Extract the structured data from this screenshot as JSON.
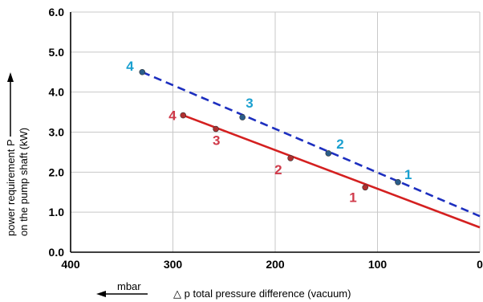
{
  "chart_data": {
    "type": "line",
    "xlabel": "△ p total pressure difference (vacuum)",
    "xunit": "mbar",
    "ylabel_line1": "power requirement P",
    "ylabel_line2": "on the pump shaft (kW)",
    "xlim": [
      400,
      0
    ],
    "ylim": [
      0.0,
      6.0
    ],
    "x_ticks": [
      400,
      300,
      200,
      100,
      0
    ],
    "x_tick_labels": [
      "400",
      "300",
      "200",
      "100",
      "0"
    ],
    "y_ticks": [
      0,
      1,
      2,
      3,
      4,
      5,
      6
    ],
    "y_tick_labels": [
      "0.0",
      "1.0",
      "2.0",
      "3.0",
      "4.0",
      "5.0",
      "6.0"
    ],
    "grid": true,
    "series": [
      {
        "color": "#1d2fbf",
        "dash": true,
        "line": [
          [
            330,
            4.5
          ],
          [
            0,
            0.9
          ]
        ],
        "points": [
          {
            "label": "1",
            "x": 80,
            "y": 1.75
          },
          {
            "label": "2",
            "x": 148,
            "y": 2.47
          },
          {
            "label": "3",
            "x": 232,
            "y": 3.37
          },
          {
            "label": "4",
            "x": 330,
            "y": 4.5
          }
        ],
        "label_color": "#1aa0d0"
      },
      {
        "color": "#d42020",
        "dash": false,
        "line": [
          [
            290,
            3.42
          ],
          [
            0,
            0.62
          ]
        ],
        "points": [
          {
            "label": "1",
            "x": 112,
            "y": 1.62
          },
          {
            "label": "2",
            "x": 185,
            "y": 2.35
          },
          {
            "label": "3",
            "x": 258,
            "y": 3.08
          },
          {
            "label": "4",
            "x": 290,
            "y": 3.42
          }
        ],
        "label_color": "#d03a4a"
      }
    ]
  }
}
